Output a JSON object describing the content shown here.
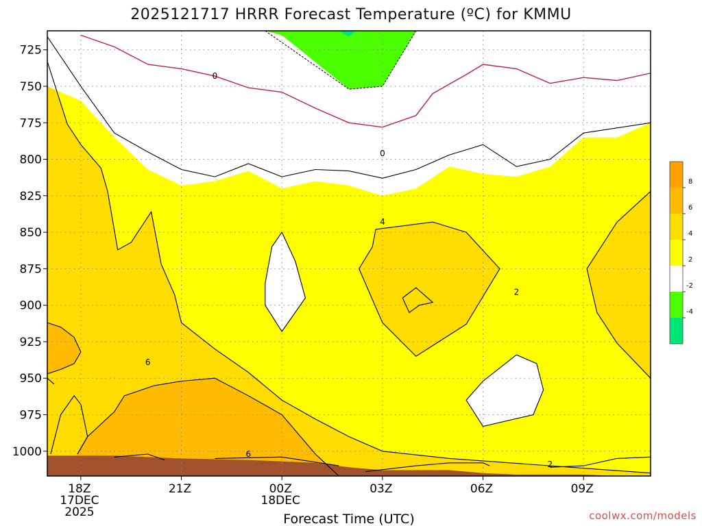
{
  "title": "2025121717 HRRR Forecast Temperature (ºC) for KMMU",
  "credit": "coolwx.com/models",
  "colors": {
    "lt_neg4": "#00e676",
    "neg4_neg2": "#4cff00",
    "neg2_2": "#ffffff",
    "p2_4": "#ffff00",
    "p4_6": "#ffdd00",
    "p6_8": "#ffbb00",
    "p8_10": "#ffa200",
    "ground": "#a0522d",
    "freezing_line": "#c2185b"
  },
  "chart_data": {
    "type": "heatmap",
    "title": "2025121717 HRRR Forecast Temperature (ºC) for KMMU",
    "xlabel": "Forecast Time (UTC)",
    "ylabel": "",
    "x_unit": "hours from 17Z 17DEC2025",
    "xlim": [
      0,
      18
    ],
    "x_ticks": [
      {
        "hour": 1,
        "lines": [
          "18Z",
          "17DEC",
          "2025"
        ]
      },
      {
        "hour": 4,
        "lines": [
          "21Z"
        ]
      },
      {
        "hour": 7,
        "lines": [
          "00Z",
          "18DEC"
        ]
      },
      {
        "hour": 10,
        "lines": [
          "03Z"
        ]
      },
      {
        "hour": 13,
        "lines": [
          "06Z"
        ]
      },
      {
        "hour": 16,
        "lines": [
          "09Z"
        ]
      }
    ],
    "y_unit": "pressure (hPa)",
    "ylim": [
      1017,
      712
    ],
    "y_ticks": [
      725,
      750,
      775,
      800,
      825,
      850,
      875,
      900,
      925,
      950,
      975,
      1000
    ],
    "grid": true,
    "colorbar": {
      "ticks": [
        8,
        6,
        4,
        2,
        -2,
        -4
      ],
      "bins": [
        "p8_10",
        "p6_8",
        "p4_6",
        "p2_4",
        "neg2_2",
        "neg4_neg2",
        "lt_neg4"
      ]
    },
    "contour_labels": [
      {
        "text": "0",
        "x": 5.0,
        "p": 743
      },
      {
        "text": "0",
        "x": 10.0,
        "p": 796
      },
      {
        "text": "4",
        "x": 10.0,
        "p": 843
      },
      {
        "text": "2",
        "x": 14.0,
        "p": 891
      },
      {
        "text": "6",
        "x": 3.0,
        "p": 939
      },
      {
        "text": "6",
        "x": 6.0,
        "p": 1002
      },
      {
        "text": "2",
        "x": 15.0,
        "p": 1009
      }
    ],
    "freezing_line": [
      [
        1.0,
        715
      ],
      [
        2.0,
        723
      ],
      [
        3.0,
        735
      ],
      [
        4.0,
        738
      ],
      [
        5.0,
        743
      ],
      [
        6.0,
        751
      ],
      [
        7.0,
        754
      ],
      [
        8.0,
        765
      ],
      [
        9.0,
        775
      ],
      [
        10.0,
        778
      ],
      [
        11.0,
        770
      ],
      [
        11.5,
        755
      ],
      [
        12.5,
        742
      ],
      [
        13.0,
        735
      ],
      [
        14.0,
        738
      ],
      [
        15.0,
        748
      ],
      [
        16.0,
        744
      ],
      [
        17.0,
        746
      ],
      [
        18.0,
        741
      ]
    ],
    "regions": [
      {
        "bin": "p2_4",
        "points": [
          [
            0,
            716
          ],
          [
            0,
            1017
          ],
          [
            18,
            1017
          ],
          [
            18,
            775
          ],
          [
            16,
            782
          ],
          [
            15,
            800
          ],
          [
            14,
            805
          ],
          [
            13,
            790
          ],
          [
            12,
            797
          ],
          [
            11,
            807
          ],
          [
            10,
            813
          ],
          [
            9,
            808
          ],
          [
            8,
            807
          ],
          [
            7,
            812
          ],
          [
            6,
            803
          ],
          [
            5,
            812
          ],
          [
            4,
            807
          ],
          [
            3,
            795
          ],
          [
            2,
            782
          ],
          [
            1,
            750
          ]
        ]
      },
      {
        "bin": "p4_6",
        "points": [
          [
            0,
            733
          ],
          [
            0,
            1017
          ],
          [
            18,
            1017
          ],
          [
            18,
            1015
          ],
          [
            12,
            1005
          ],
          [
            10,
            1000
          ],
          [
            9,
            990
          ],
          [
            8,
            978
          ],
          [
            7,
            965
          ],
          [
            6,
            946
          ],
          [
            5,
            930
          ],
          [
            4,
            912
          ],
          [
            3.8,
            893
          ],
          [
            3.4,
            872
          ],
          [
            3.1,
            836
          ],
          [
            2.5,
            857
          ],
          [
            2.1,
            862
          ],
          [
            1.8,
            822
          ],
          [
            1.6,
            806
          ],
          [
            1,
            790
          ],
          [
            0.6,
            776
          ]
        ]
      },
      {
        "bin": "p6_8",
        "points": [
          [
            0,
            1017
          ],
          [
            8.7,
            1017
          ],
          [
            8.0,
            1002
          ],
          [
            7.0,
            975
          ],
          [
            6.0,
            962
          ],
          [
            5.0,
            950
          ],
          [
            4.0,
            952
          ],
          [
            3.2,
            955
          ],
          [
            2.3,
            962
          ],
          [
            2.0,
            973
          ],
          [
            1.2,
            990
          ],
          [
            0.9,
            1002
          ]
        ]
      },
      {
        "bin": "p6_8",
        "points": [
          [
            0,
            912
          ],
          [
            0.4,
            915
          ],
          [
            0.8,
            922
          ],
          [
            1.0,
            932
          ],
          [
            0.8,
            940
          ],
          [
            0.4,
            944
          ],
          [
            0,
            947
          ]
        ]
      },
      {
        "bin": "p6_8",
        "points": [
          [
            10.6,
            895
          ],
          [
            11.0,
            888
          ],
          [
            11.5,
            898
          ],
          [
            11.1,
            900
          ],
          [
            10.8,
            905
          ]
        ]
      },
      {
        "bin": "p4_6",
        "points": [
          [
            18,
            822
          ],
          [
            17.0,
            843
          ],
          [
            16.1,
            875
          ],
          [
            16.4,
            905
          ],
          [
            17.0,
            926
          ],
          [
            18,
            950
          ]
        ]
      },
      {
        "bin": "p4_6",
        "points": [
          [
            9.8,
            848
          ],
          [
            11.5,
            843
          ],
          [
            12.5,
            850
          ],
          [
            13.5,
            875
          ],
          [
            12.5,
            913
          ],
          [
            11.0,
            935
          ],
          [
            10.0,
            912
          ],
          [
            9.3,
            875
          ],
          [
            9.7,
            860
          ]
        ]
      },
      {
        "bin": "neg2_2",
        "points": [
          [
            7.0,
            850
          ],
          [
            7.4,
            870
          ],
          [
            7.7,
            895
          ],
          [
            7.0,
            918
          ],
          [
            6.5,
            900
          ],
          [
            6.5,
            885
          ],
          [
            6.7,
            860
          ]
        ]
      },
      {
        "bin": "neg2_2",
        "points": [
          [
            14.0,
            934
          ],
          [
            14.6,
            940
          ],
          [
            14.8,
            958
          ],
          [
            14.5,
            975
          ],
          [
            13.0,
            983
          ],
          [
            12.5,
            965
          ],
          [
            13.0,
            952
          ]
        ]
      },
      {
        "bin": "neg2_2",
        "points": [
          [
            0,
            717
          ],
          [
            0,
            750
          ],
          [
            1,
            760
          ],
          [
            2,
            785
          ],
          [
            3,
            807
          ],
          [
            4,
            818
          ],
          [
            5,
            815
          ],
          [
            6,
            808
          ],
          [
            7,
            820
          ],
          [
            8,
            815
          ],
          [
            9,
            818
          ],
          [
            10,
            825
          ],
          [
            11,
            820
          ],
          [
            12,
            805
          ],
          [
            13,
            810
          ],
          [
            14,
            812
          ],
          [
            15,
            805
          ],
          [
            16,
            785
          ],
          [
            17,
            785
          ],
          [
            18,
            775
          ],
          [
            18,
            739
          ],
          [
            17,
            744
          ],
          [
            16,
            742
          ],
          [
            15,
            745
          ],
          [
            14,
            736
          ],
          [
            13,
            733
          ],
          [
            11.5,
            750
          ],
          [
            11,
            770
          ],
          [
            10,
            780
          ],
          [
            9,
            775
          ],
          [
            8,
            765
          ],
          [
            7,
            754
          ],
          [
            6,
            750
          ],
          [
            5,
            743
          ],
          [
            4,
            738
          ],
          [
            3,
            735
          ],
          [
            2,
            725
          ],
          [
            1,
            715
          ]
        ]
      },
      {
        "bin": "neg4_neg2",
        "points": [
          [
            6.5,
            712
          ],
          [
            11.0,
            712
          ],
          [
            10.0,
            750
          ],
          [
            9.0,
            752
          ],
          [
            7.0,
            715
          ]
        ]
      },
      {
        "bin": "lt_neg4",
        "points": [
          [
            8.7,
            712
          ],
          [
            9.2,
            712
          ],
          [
            9.0,
            716
          ]
        ]
      }
    ],
    "contours": [
      [
        [
          0.1,
          1002
        ],
        [
          0.4,
          975
        ],
        [
          0.8,
          962
        ],
        [
          1.0,
          968
        ],
        [
          1.2,
          990
        ],
        [
          0.9,
          1002
        ]
      ],
      [
        [
          0,
          733
        ],
        [
          0.6,
          776
        ],
        [
          1,
          790
        ],
        [
          1.6,
          806
        ],
        [
          1.8,
          822
        ],
        [
          2.1,
          862
        ],
        [
          2.5,
          857
        ],
        [
          3.1,
          836
        ],
        [
          3.4,
          872
        ],
        [
          3.8,
          893
        ],
        [
          4,
          912
        ],
        [
          5,
          930
        ],
        [
          6,
          946
        ],
        [
          7,
          965
        ],
        [
          8,
          978
        ],
        [
          9,
          990
        ],
        [
          10,
          1000
        ],
        [
          12,
          1005
        ],
        [
          18,
          1015
        ]
      ],
      [
        [
          0,
          950
        ],
        [
          0.2,
          954
        ]
      ],
      [
        [
          0,
          716
        ],
        [
          1,
          750
        ],
        [
          2,
          782
        ],
        [
          3,
          795
        ],
        [
          4,
          807
        ],
        [
          5,
          812
        ],
        [
          6,
          803
        ],
        [
          7,
          812
        ],
        [
          8,
          807
        ],
        [
          9,
          808
        ],
        [
          10,
          813
        ],
        [
          11,
          807
        ],
        [
          12,
          797
        ],
        [
          13,
          790
        ],
        [
          14,
          805
        ],
        [
          15,
          800
        ],
        [
          16,
          782
        ],
        [
          18,
          775
        ]
      ],
      [
        [
          18,
          822
        ],
        [
          17.0,
          843
        ],
        [
          16.1,
          875
        ],
        [
          16.4,
          905
        ],
        [
          17.0,
          926
        ],
        [
          18,
          950
        ]
      ],
      [
        [
          9.8,
          848
        ],
        [
          11.5,
          843
        ],
        [
          12.5,
          850
        ],
        [
          13.5,
          875
        ],
        [
          12.5,
          913
        ],
        [
          11.0,
          935
        ],
        [
          10.0,
          912
        ],
        [
          9.3,
          875
        ],
        [
          9.7,
          860
        ],
        [
          9.8,
          848
        ]
      ],
      [
        [
          7.0,
          850
        ],
        [
          7.4,
          870
        ],
        [
          7.7,
          895
        ],
        [
          7.0,
          918
        ],
        [
          6.5,
          900
        ],
        [
          6.5,
          885
        ],
        [
          6.7,
          860
        ],
        [
          7.0,
          850
        ]
      ],
      [
        [
          14.0,
          934
        ],
        [
          14.6,
          940
        ],
        [
          14.8,
          958
        ],
        [
          14.5,
          975
        ],
        [
          13.0,
          983
        ],
        [
          12.5,
          965
        ],
        [
          13.0,
          952
        ],
        [
          14.0,
          934
        ]
      ],
      [
        [
          0,
          912
        ],
        [
          0.4,
          915
        ],
        [
          0.8,
          922
        ],
        [
          1.0,
          932
        ],
        [
          0.8,
          940
        ],
        [
          0.4,
          944
        ],
        [
          0,
          947
        ]
      ],
      [
        [
          10.6,
          895
        ],
        [
          11.0,
          888
        ],
        [
          11.5,
          898
        ],
        [
          11.1,
          900
        ],
        [
          10.8,
          905
        ],
        [
          10.6,
          895
        ]
      ],
      [
        [
          0.9,
          1002
        ],
        [
          1.2,
          990
        ],
        [
          2.0,
          973
        ],
        [
          2.3,
          962
        ],
        [
          3.2,
          955
        ],
        [
          4.0,
          952
        ],
        [
          5.0,
          950
        ],
        [
          6.0,
          962
        ],
        [
          7.0,
          975
        ],
        [
          8.0,
          1002
        ],
        [
          8.7,
          1017
        ]
      ],
      [
        [
          2,
          1004
        ],
        [
          3,
          1002
        ],
        [
          3.5,
          1006
        ]
      ],
      [
        [
          5,
          1005
        ],
        [
          7,
          1004
        ],
        [
          8.7,
          1010
        ]
      ],
      [
        [
          9.5,
          1014
        ],
        [
          11,
          1010
        ],
        [
          12,
          1008
        ],
        [
          13,
          1008
        ],
        [
          13.2,
          1010
        ]
      ],
      [
        [
          15,
          1011
        ],
        [
          16,
          1010
        ],
        [
          17,
          1005
        ],
        [
          18,
          1004
        ]
      ]
    ],
    "freezing_dashed": [
      [
        6.5,
        712
      ],
      [
        9.0,
        752
      ],
      [
        10.0,
        750
      ],
      [
        11.0,
        712
      ]
    ],
    "ground": [
      [
        0,
        1003
      ],
      [
        2,
        1003
      ],
      [
        4,
        1005
      ],
      [
        6,
        1006
      ],
      [
        8,
        1008
      ],
      [
        9,
        1011
      ],
      [
        10,
        1013
      ],
      [
        12,
        1013
      ],
      [
        13,
        1015
      ],
      [
        14,
        1016
      ],
      [
        15,
        1016
      ],
      [
        16,
        1016
      ],
      [
        17,
        1017
      ],
      [
        18,
        1018
      ],
      [
        18,
        1030
      ],
      [
        0,
        1030
      ]
    ]
  }
}
